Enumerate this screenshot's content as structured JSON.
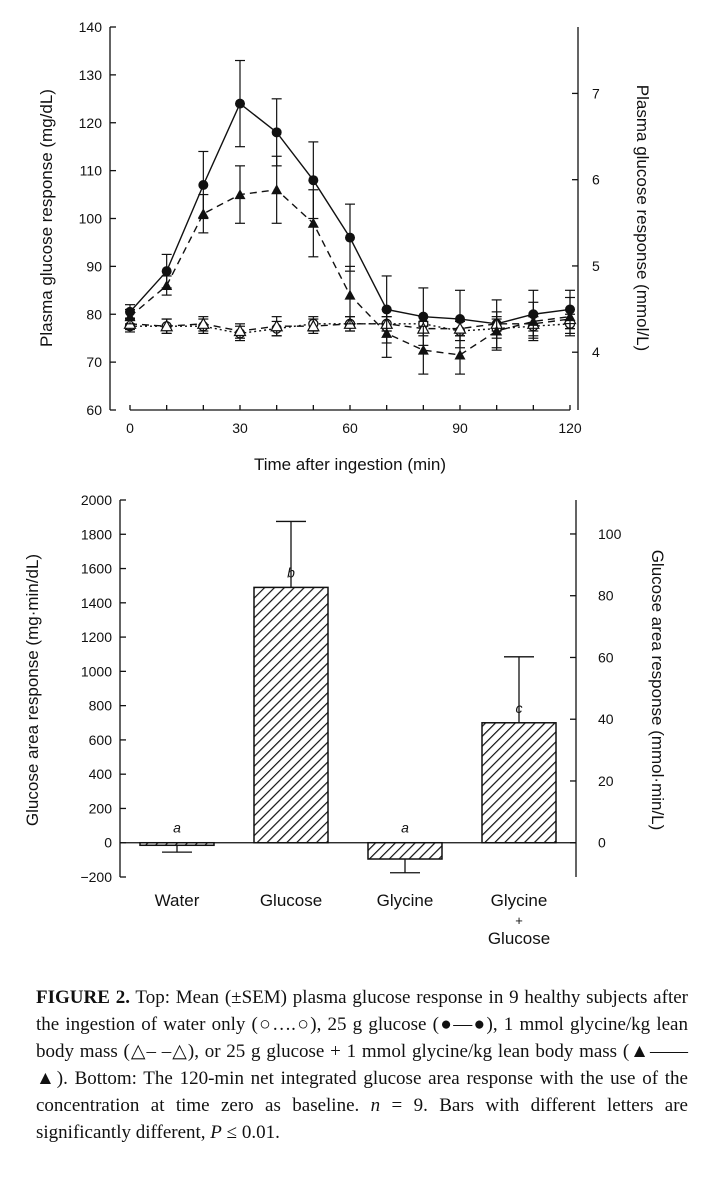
{
  "chart_data": [
    {
      "type": "line",
      "xlabel": "Time after ingestion (min)",
      "ylabel": "Plasma glucose response (mg/dL)",
      "y2label": "Plasma glucose response (mmol/L)",
      "xlim": [
        0,
        120
      ],
      "ylim": [
        60,
        140
      ],
      "y2lim": [
        3.33,
        7.77
      ],
      "xticks": [
        "0",
        "30",
        "60",
        "90",
        "120"
      ],
      "yticks": [
        "60",
        "70",
        "80",
        "90",
        "100",
        "110",
        "120",
        "130",
        "140"
      ],
      "y2ticks": [
        "4",
        "5",
        "6",
        "7"
      ],
      "x": [
        0,
        10,
        20,
        30,
        40,
        50,
        60,
        70,
        80,
        90,
        100,
        110,
        120
      ],
      "series": [
        {
          "marker": "open-circle",
          "line": "dotted",
          "values": [
            77.5,
            77.5,
            77.5,
            76,
            77,
            78,
            78,
            78,
            78,
            76.5,
            77,
            77.5,
            78
          ],
          "err": [
            1.2,
            1.5,
            1.5,
            1.5,
            1.5,
            1.5,
            1.5,
            1.5,
            1.5,
            2.0,
            2.0,
            2.0,
            2.0
          ]
        },
        {
          "marker": "filled-circle",
          "line": "solid",
          "values": [
            80.5,
            89,
            107,
            124,
            118,
            108,
            96,
            81,
            79.5,
            79,
            78,
            80,
            81
          ],
          "err": [
            1.5,
            3.5,
            7,
            9,
            7,
            8,
            7,
            7,
            6,
            6,
            5,
            5,
            4
          ]
        },
        {
          "marker": "open-triangle",
          "line": "dashed",
          "values": [
            78,
            77.5,
            78,
            76.5,
            77.5,
            77.5,
            78,
            78,
            77,
            77,
            78,
            78,
            79
          ],
          "err": [
            1.2,
            1.5,
            1.5,
            1.5,
            2.0,
            1.5,
            1.5,
            1.5,
            1.5,
            1.5,
            1.5,
            1.5,
            2.0
          ]
        },
        {
          "marker": "filled-triangle",
          "line": "dashed",
          "values": [
            79.5,
            86,
            101,
            105,
            106,
            99,
            84,
            76,
            72.5,
            71.5,
            76.5,
            78.5,
            79.5
          ],
          "err": [
            1.5,
            2,
            4,
            6,
            7,
            7,
            6,
            5,
            5,
            4,
            4,
            4,
            4
          ]
        }
      ]
    },
    {
      "type": "bar",
      "categories": [
        "Water",
        "Glucose",
        "Glycine",
        "Glycine\n+\nGlucose"
      ],
      "category_lines": [
        [
          "Water"
        ],
        [
          "Glucose"
        ],
        [
          "Glycine"
        ],
        [
          "Glycine",
          "+",
          "Glucose"
        ]
      ],
      "values": [
        -15,
        1490,
        -95,
        700
      ],
      "err": [
        40,
        385,
        80,
        385
      ],
      "letters": [
        "a",
        "b",
        "a",
        "c"
      ],
      "ylabel": "Glucose area response (mg·min/dL)",
      "y2label": "Glucose area response (mmol·min/L)",
      "ylim": [
        -200,
        2000
      ],
      "y2lim": [
        -11.1,
        111
      ],
      "yticks": [
        "−200",
        "0",
        "200",
        "400",
        "600",
        "800",
        "1000",
        "1200",
        "1400",
        "1600",
        "1800",
        "2000"
      ],
      "y2ticks": [
        "0",
        "20",
        "40",
        "60",
        "80",
        "100"
      ]
    }
  ],
  "caption": {
    "label": "FIGURE 2.",
    "line1": " Top: Mean (±SEM) plasma glucose response in 9 healthy subjects after the ingestion of water only (○….○), 25 g glucose (●—●), 1 mmol glycine/kg lean body mass (△– –△), or 25 g glucose + 1 mmol glycine/kg lean body mass (▲——▲). Bottom: The 120-min net integrated glucose area response with the use of the concentration at time zero as baseline. ",
    "n_label": "n",
    "n_text": " = 9. Bars with different letters are significantly different, ",
    "p_label": "P",
    "p_text": " ≤ 0.01."
  }
}
